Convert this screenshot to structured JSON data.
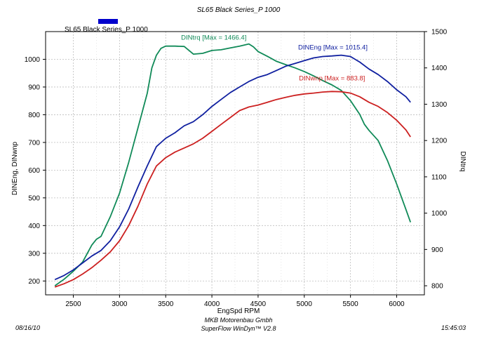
{
  "chart_data": {
    "type": "line",
    "title": "SL65 Black Series_P 1000",
    "legend": {
      "label": "SL65 Black Series_P 1000",
      "color": "#0000cc",
      "position": "top-left"
    },
    "xlabel": "EngSpd  RPM",
    "ylabel_left": "DINEng, DINwnp",
    "ylabel_right": "DINtrq",
    "xlim": [
      2200,
      6300
    ],
    "ylim_left": [
      150,
      1100
    ],
    "ylim_right": [
      775,
      1500
    ],
    "x_ticks": [
      "2500",
      "3000",
      "3500",
      "4000",
      "4500",
      "5000",
      "5500",
      "6000"
    ],
    "y_left_ticks": [
      "200",
      "300",
      "400",
      "500",
      "600",
      "700",
      "800",
      "900",
      "1000"
    ],
    "y_right_ticks": [
      "800",
      "900",
      "1000",
      "1100",
      "1200",
      "1300",
      "1400",
      "1500"
    ],
    "grid": true,
    "series": [
      {
        "name": "DINtrq",
        "annotation": "DINtrq [Max = 1466.4]",
        "axis": "right",
        "color": "#108a58",
        "x": [
          2300,
          2400,
          2500,
          2600,
          2700,
          2750,
          2800,
          2900,
          3000,
          3100,
          3200,
          3300,
          3350,
          3400,
          3450,
          3500,
          3600,
          3700,
          3800,
          3900,
          4000,
          4100,
          4200,
          4300,
          4400,
          4450,
          4500,
          4600,
          4700,
          4800,
          4900,
          5000,
          5100,
          5200,
          5300,
          5400,
          5500,
          5600,
          5650,
          5700,
          5800,
          5900,
          6000,
          6100,
          6150
        ],
        "y": [
          800,
          818,
          840,
          865,
          912,
          928,
          936,
          990,
          1055,
          1140,
          1235,
          1330,
          1400,
          1435,
          1454,
          1460,
          1460,
          1459,
          1438,
          1440,
          1448,
          1450,
          1455,
          1460,
          1466,
          1458,
          1445,
          1432,
          1418,
          1409,
          1400,
          1390,
          1378,
          1365,
          1353,
          1338,
          1310,
          1272,
          1245,
          1228,
          1200,
          1145,
          1080,
          1010,
          975
        ]
      },
      {
        "name": "DINEng",
        "annotation": "DINEng [Max = 1015.4]",
        "axis": "left",
        "color": "#1020a0",
        "x": [
          2300,
          2400,
          2500,
          2600,
          2700,
          2800,
          2900,
          3000,
          3100,
          3200,
          3300,
          3400,
          3500,
          3600,
          3700,
          3800,
          3900,
          4000,
          4100,
          4200,
          4300,
          4400,
          4500,
          4600,
          4700,
          4800,
          4900,
          5000,
          5100,
          5200,
          5300,
          5400,
          5500,
          5600,
          5700,
          5800,
          5900,
          6000,
          6100,
          6150
        ],
        "y": [
          205,
          220,
          240,
          265,
          290,
          310,
          345,
          395,
          460,
          540,
          615,
          685,
          715,
          735,
          760,
          775,
          800,
          830,
          855,
          880,
          900,
          920,
          935,
          945,
          960,
          975,
          985,
          995,
          1005,
          1010,
          1012,
          1015,
          1010,
          990,
          965,
          945,
          920,
          890,
          865,
          845
        ]
      },
      {
        "name": "DINwnp",
        "annotation": "DINwnp [Max = 883.8]",
        "axis": "left",
        "color": "#cc2020",
        "x": [
          2300,
          2400,
          2500,
          2600,
          2700,
          2800,
          2900,
          3000,
          3100,
          3200,
          3300,
          3400,
          3500,
          3600,
          3700,
          3800,
          3900,
          4000,
          4100,
          4200,
          4300,
          4400,
          4500,
          4600,
          4700,
          4800,
          4900,
          5000,
          5100,
          5200,
          5300,
          5400,
          5500,
          5600,
          5700,
          5800,
          5900,
          6000,
          6100,
          6150
        ],
        "y": [
          178,
          190,
          205,
          225,
          248,
          275,
          305,
          345,
          400,
          470,
          550,
          615,
          645,
          665,
          680,
          695,
          715,
          740,
          765,
          790,
          815,
          828,
          835,
          845,
          855,
          863,
          870,
          875,
          878,
          882,
          884,
          883,
          878,
          865,
          845,
          830,
          808,
          780,
          745,
          720
        ]
      }
    ]
  },
  "footer": {
    "date": "08/16/10",
    "company": "MKB Motorenbau Gmbh",
    "software": "SuperFlow WinDyn™ V2.8",
    "time": "15:45:03"
  }
}
